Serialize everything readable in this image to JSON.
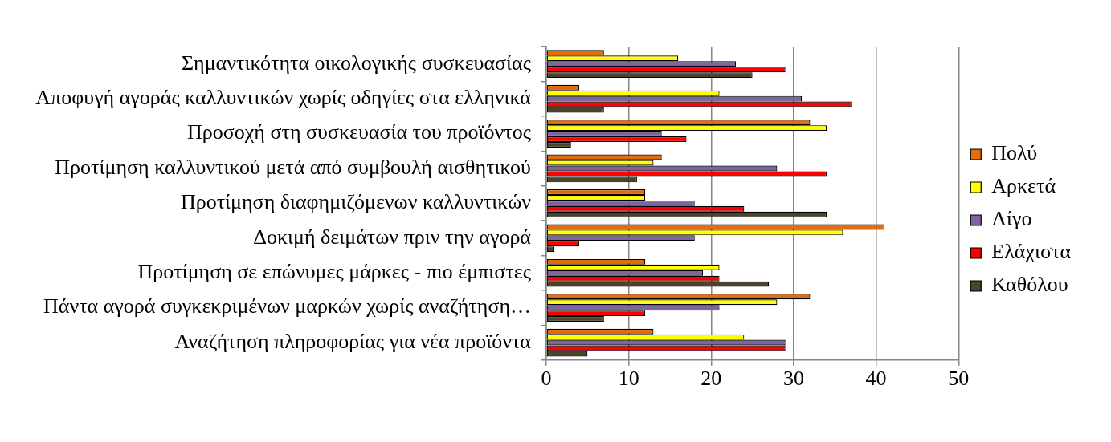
{
  "chart_data": {
    "type": "bar",
    "orientation": "horizontal",
    "categories": [
      "Σημαντικότητα οικολογικής συσκευασίας",
      "Αποφυγή αγοράς καλλυντικών χωρίς οδηγίες στα ελληνικά",
      "Προσοχή στη συσκευασία του προϊόντος",
      "Προτίμηση καλλυντικού μετά από συμβουλή αισθητικού",
      "Προτίμηση διαφημιζόμενων καλλυντικών",
      "Δοκιμή δειμάτων πριν την αγορά",
      "Προτίμηση σε επώνυμες μάρκες - πιο έμπιστες",
      "Πάντα αγορά συγκεκριμένων μαρκών χωρίς αναζήτηση…",
      "Αναζήτηση πληροφορίας για νέα προϊόντα"
    ],
    "series": [
      {
        "name": "Πολύ",
        "color": "#e46c0a",
        "values": [
          7,
          4,
          32,
          14,
          12,
          41,
          12,
          32,
          13
        ]
      },
      {
        "name": "Αρκετά",
        "color": "#ffff00",
        "values": [
          16,
          21,
          34,
          13,
          12,
          36,
          21,
          28,
          24
        ]
      },
      {
        "name": "Λίγο",
        "color": "#8064a2",
        "values": [
          23,
          31,
          14,
          28,
          18,
          18,
          19,
          21,
          29
        ]
      },
      {
        "name": "Ελάχιστα",
        "color": "#ff0000",
        "values": [
          29,
          37,
          17,
          34,
          24,
          4,
          21,
          12,
          29
        ]
      },
      {
        "name": "Καθόλου",
        "color": "#4a452a",
        "values": [
          25,
          7,
          3,
          11,
          34,
          1,
          27,
          7,
          5
        ]
      }
    ],
    "xlim": [
      0,
      50
    ],
    "xticks": [
      0,
      10,
      20,
      30,
      40,
      50
    ],
    "grid": "x",
    "legend": "right"
  }
}
